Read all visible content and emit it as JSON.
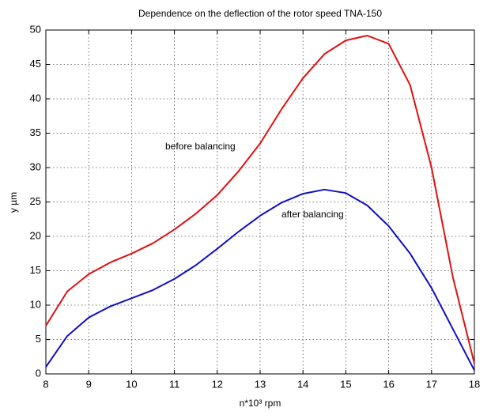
{
  "chart_data": {
    "type": "line",
    "title": "Dependence on the deflection of the rotor speed TNA-150",
    "xlabel": "n*10³ rpm",
    "ylabel": "y µm",
    "annotations": [
      "before balancing",
      "after balancing"
    ],
    "x": [
      8,
      8.5,
      9,
      9.5,
      10,
      10.5,
      11,
      11.5,
      12,
      12.5,
      13,
      13.5,
      14,
      14.5,
      15,
      15.5,
      16,
      16.5,
      17,
      17.5,
      18
    ],
    "series": [
      {
        "name": "before balancing",
        "color": "#e01010",
        "values": [
          7,
          12,
          14.5,
          16.2,
          17.5,
          19,
          21,
          23.3,
          26,
          29.5,
          33.5,
          38.5,
          43,
          46.5,
          48.5,
          49.2,
          48,
          42,
          30,
          14,
          1.5
        ]
      },
      {
        "name": "after balancing",
        "color": "#1010c0",
        "values": [
          1,
          5.5,
          8.2,
          9.8,
          11,
          12.2,
          13.8,
          15.8,
          18.2,
          20.7,
          23,
          24.9,
          26.2,
          26.8,
          26.3,
          24.5,
          21.5,
          17.5,
          12.5,
          6.5,
          0.5
        ]
      }
    ],
    "xlim": [
      8,
      18
    ],
    "xticks": [
      8,
      9,
      10,
      11,
      12,
      13,
      14,
      15,
      16,
      17,
      18
    ],
    "ylim": [
      0,
      50
    ],
    "yticks": [
      0,
      5,
      10,
      15,
      20,
      25,
      30,
      35,
      40,
      45,
      50
    ],
    "grid": true
  }
}
